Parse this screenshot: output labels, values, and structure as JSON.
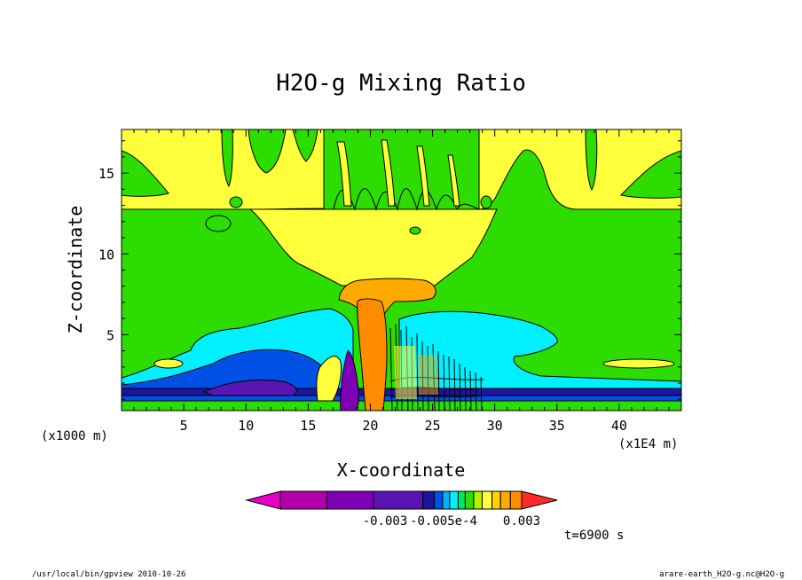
{
  "chart_data": {
    "type": "heatmap",
    "title": "H2O-g Mixing Ratio",
    "xlabel": "X-coordinate",
    "ylabel": "Z-coordinate",
    "x_unit_left": "(x1000 m)",
    "x_unit_right": "(x1E4 m)",
    "xlim": [
      0,
      45
    ],
    "ylim": [
      0.3,
      17.7
    ],
    "xticks": [
      5,
      10,
      15,
      20,
      25,
      30,
      35,
      40
    ],
    "yticks": [
      5,
      10,
      15
    ],
    "xtick_labels": [
      "5",
      "10",
      "15",
      "20",
      "25",
      "30",
      "35",
      "40"
    ],
    "ytick_labels": [
      "5",
      "10",
      "15"
    ],
    "colorbar": {
      "colors": [
        "#e600c8",
        "#b400aa",
        "#7d00b4",
        "#5a14b4",
        "#1e14a0",
        "#0050e6",
        "#00b4ff",
        "#00f0ff",
        "#00e664",
        "#2ddc00",
        "#b4f000",
        "#ffff3c",
        "#ffd200",
        "#ffaa00",
        "#ff8c00",
        "#ff2a2a"
      ],
      "labels": [
        "-0.003",
        "-0.005e-4",
        "0.003"
      ]
    },
    "time_label": "t=6900 s",
    "footer_left": "/usr/local/bin/gpview  2010-10-26",
    "footer_right": "arare-earth_H2O-g.nc@H2O-g"
  }
}
